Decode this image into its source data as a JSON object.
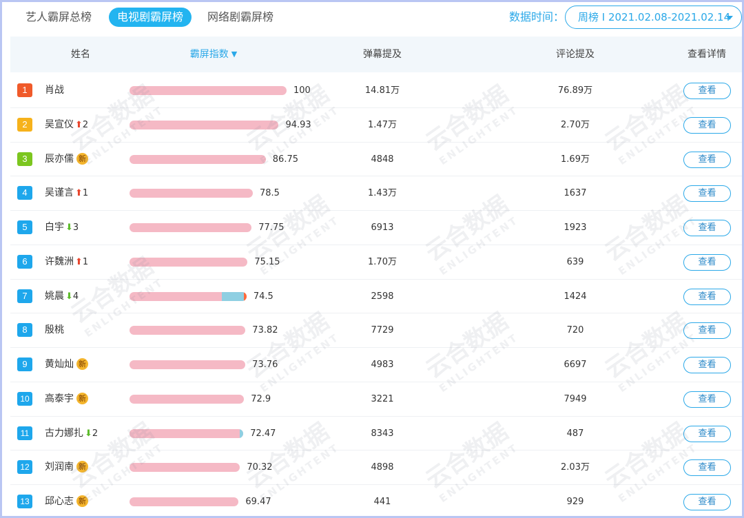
{
  "tabs": [
    {
      "label": "艺人霸屏总榜",
      "active": false
    },
    {
      "label": "电视剧霸屏榜",
      "active": true
    },
    {
      "label": "网络剧霸屏榜",
      "active": false
    }
  ],
  "date_label": "数据时间：",
  "date_select": {
    "value": "周榜 I 2021.02.08-2021.02.14"
  },
  "colors": {
    "accent": "#23b4f0",
    "bar": "#f5b9c5",
    "rank_top1": "#f05a2a",
    "rank_top2": "#f6b21b",
    "rank_top3": "#7cc61f",
    "rank_other": "#1ea7ec",
    "trend_up": "#e8452d",
    "trend_down": "#5dbb2b",
    "badge_new": "#f4b52d"
  },
  "table": {
    "headers": {
      "name": "姓名",
      "index": "霸屏指数",
      "danmu": "弹幕提及",
      "comment": "评论提及",
      "detail": "查看详情"
    },
    "sort_icon": "sort-down-icon",
    "new_badge_label": "新",
    "button_label": "查看",
    "rows": [
      {
        "rank": "1",
        "name": "肖战",
        "trend": null,
        "trend_num": "",
        "is_new": false,
        "score": "100",
        "score_value": 100,
        "danmu": "14.81万",
        "comment": "76.89万"
      },
      {
        "rank": "2",
        "name": "吴宣仪",
        "trend": "up",
        "trend_num": "2",
        "is_new": false,
        "score": "94.93",
        "score_value": 94.93,
        "danmu": "1.47万",
        "comment": "2.70万"
      },
      {
        "rank": "3",
        "name": "辰亦儒",
        "trend": null,
        "trend_num": "",
        "is_new": true,
        "score": "86.75",
        "score_value": 86.75,
        "danmu": "4848",
        "comment": "1.69万"
      },
      {
        "rank": "4",
        "name": "吴谨言",
        "trend": "up",
        "trend_num": "1",
        "is_new": false,
        "score": "78.5",
        "score_value": 78.5,
        "danmu": "1.43万",
        "comment": "1637"
      },
      {
        "rank": "5",
        "name": "白宇",
        "trend": "down",
        "trend_num": "3",
        "is_new": false,
        "score": "77.75",
        "score_value": 77.75,
        "danmu": "6913",
        "comment": "1923"
      },
      {
        "rank": "6",
        "name": "许魏洲",
        "trend": "up",
        "trend_num": "1",
        "is_new": false,
        "score": "75.15",
        "score_value": 75.15,
        "danmu": "1.70万",
        "comment": "639"
      },
      {
        "rank": "7",
        "name": "姚晨",
        "trend": "down",
        "trend_num": "4",
        "is_new": false,
        "score": "74.5",
        "score_value": 74.5,
        "danmu": "2598",
        "comment": "1424",
        "segments": {
          "blue": 0.19,
          "red": 0.02
        }
      },
      {
        "rank": "8",
        "name": "殷桃",
        "trend": null,
        "trend_num": "",
        "is_new": false,
        "score": "73.82",
        "score_value": 73.82,
        "danmu": "7729",
        "comment": "720"
      },
      {
        "rank": "9",
        "name": "黄灿灿",
        "trend": null,
        "trend_num": "",
        "is_new": true,
        "score": "73.76",
        "score_value": 73.76,
        "danmu": "4983",
        "comment": "6697"
      },
      {
        "rank": "10",
        "name": "高泰宇",
        "trend": null,
        "trend_num": "",
        "is_new": true,
        "score": "72.9",
        "score_value": 72.9,
        "danmu": "3221",
        "comment": "7949"
      },
      {
        "rank": "11",
        "name": "古力娜扎",
        "trend": "down",
        "trend_num": "2",
        "is_new": false,
        "score": "72.47",
        "score_value": 72.47,
        "danmu": "8343",
        "comment": "487",
        "segments": {
          "blue": 0.03,
          "red": 0
        }
      },
      {
        "rank": "12",
        "name": "刘润南",
        "trend": null,
        "trend_num": "",
        "is_new": true,
        "score": "70.32",
        "score_value": 70.32,
        "danmu": "4898",
        "comment": "2.03万"
      },
      {
        "rank": "13",
        "name": "邱心志",
        "trend": null,
        "trend_num": "",
        "is_new": true,
        "score": "69.47",
        "score_value": 69.47,
        "danmu": "441",
        "comment": "929"
      }
    ]
  },
  "watermark": {
    "text": "云合数据",
    "sub": "ENLIGHTENT"
  }
}
